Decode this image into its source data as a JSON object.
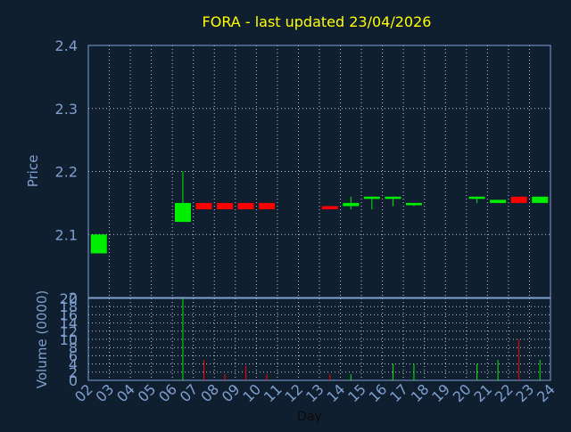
{
  "chart_data": [
    {
      "type": "candlestick",
      "title": "FORA - last updated 23/04/2026",
      "xlabel": "",
      "ylabel": "Price",
      "ylim": [
        2.0,
        2.4
      ],
      "yticks": [
        "2",
        "2.1",
        "2.2",
        "2.3",
        "2.4"
      ],
      "grid": true,
      "colors": {
        "up": "#00ee00",
        "down": "#ff0000",
        "axis": "#7f9fcf",
        "title": "#ffff00",
        "grid": "#c0c8d0"
      },
      "candles": [
        {
          "day": "02",
          "open": 2.07,
          "high": 2.1,
          "low": 2.07,
          "close": 2.1
        },
        {
          "day": "06",
          "open": 2.12,
          "high": 2.2,
          "low": 2.12,
          "close": 2.15
        },
        {
          "day": "07",
          "open": 2.15,
          "high": 2.15,
          "low": 2.14,
          "close": 2.14
        },
        {
          "day": "08",
          "open": 2.15,
          "high": 2.15,
          "low": 2.14,
          "close": 2.14
        },
        {
          "day": "09",
          "open": 2.15,
          "high": 2.15,
          "low": 2.14,
          "close": 2.14
        },
        {
          "day": "10",
          "open": 2.15,
          "high": 2.15,
          "low": 2.14,
          "close": 2.14
        },
        {
          "day": "13",
          "open": 2.145,
          "high": 2.145,
          "low": 2.14,
          "close": 2.14
        },
        {
          "day": "14",
          "open": 2.145,
          "high": 2.16,
          "low": 2.14,
          "close": 2.15
        },
        {
          "day": "15",
          "open": 2.16,
          "high": 2.16,
          "low": 2.14,
          "close": 2.16
        },
        {
          "day": "16",
          "open": 2.16,
          "high": 2.16,
          "low": 2.145,
          "close": 2.16
        },
        {
          "day": "17",
          "open": 2.15,
          "high": 2.15,
          "low": 2.145,
          "close": 2.15
        },
        {
          "day": "20",
          "open": 2.16,
          "high": 2.16,
          "low": 2.15,
          "close": 2.16
        },
        {
          "day": "21",
          "open": 2.15,
          "high": 2.155,
          "low": 2.15,
          "close": 2.155
        },
        {
          "day": "22",
          "open": 2.16,
          "high": 2.16,
          "low": 2.15,
          "close": 2.15
        },
        {
          "day": "23",
          "open": 2.15,
          "high": 2.16,
          "low": 2.15,
          "close": 2.16
        }
      ]
    },
    {
      "type": "bar",
      "title": "",
      "xlabel": "Day",
      "ylabel": "Volume (0000)",
      "ylim": [
        0,
        20
      ],
      "yticks": [
        "0",
        "2",
        "4",
        "6",
        "8",
        "10",
        "12",
        "14",
        "16",
        "18",
        "20"
      ],
      "grid": true,
      "categories": [
        "02",
        "03",
        "04",
        "05",
        "06",
        "07",
        "08",
        "09",
        "10",
        "11",
        "12",
        "13",
        "14",
        "15",
        "16",
        "17",
        "18",
        "19",
        "20",
        "21",
        "22",
        "23",
        "24"
      ],
      "bars": [
        {
          "day": "06",
          "value": 20,
          "direction": "up"
        },
        {
          "day": "07",
          "value": 5,
          "direction": "down"
        },
        {
          "day": "08",
          "value": 1.5,
          "direction": "down"
        },
        {
          "day": "09",
          "value": 3.5,
          "direction": "down"
        },
        {
          "day": "10",
          "value": 1.5,
          "direction": "down"
        },
        {
          "day": "13",
          "value": 1.5,
          "direction": "down"
        },
        {
          "day": "14",
          "value": 1.5,
          "direction": "up"
        },
        {
          "day": "16",
          "value": 4,
          "direction": "up"
        },
        {
          "day": "17",
          "value": 4,
          "direction": "up"
        },
        {
          "day": "20",
          "value": 4,
          "direction": "up"
        },
        {
          "day": "21",
          "value": 5,
          "direction": "up"
        },
        {
          "day": "22",
          "value": 10,
          "direction": "down"
        },
        {
          "day": "23",
          "value": 5,
          "direction": "up"
        }
      ]
    }
  ]
}
